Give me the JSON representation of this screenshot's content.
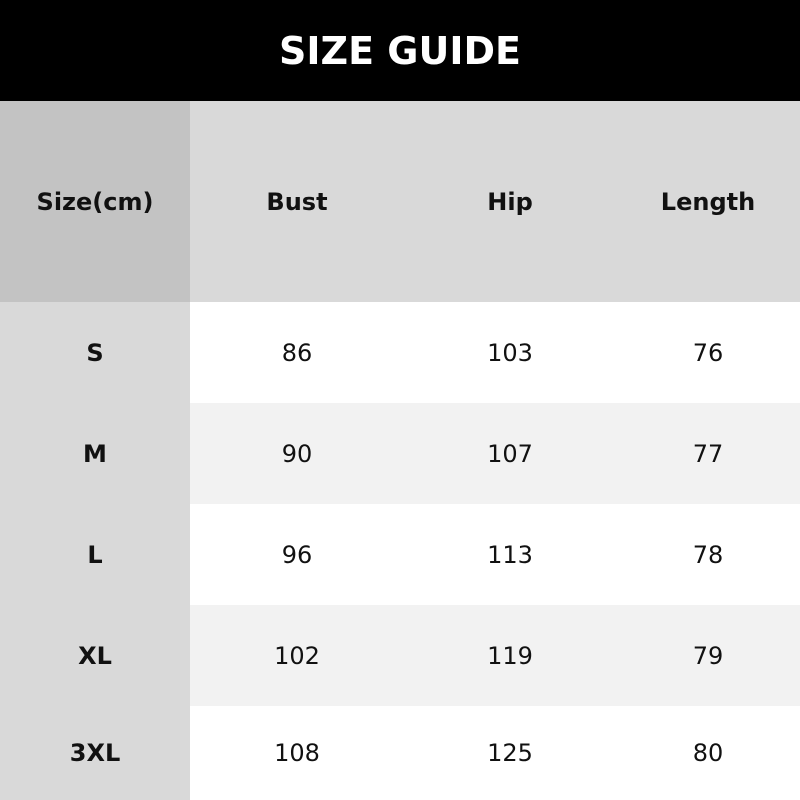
{
  "title": "SIZE GUIDE",
  "headers": [
    "Size(cm)",
    "Bust",
    "Hip",
    "Length"
  ],
  "rows": [
    [
      "S",
      "86",
      "103",
      "76"
    ],
    [
      "M",
      "90",
      "107",
      "77"
    ],
    [
      "L",
      "96",
      "113",
      "78"
    ],
    [
      "XL",
      "102",
      "119",
      "79"
    ],
    [
      "3XL",
      "108",
      "125",
      "80"
    ]
  ],
  "colors": {
    "header_bg": "#000000",
    "header_row_bg": "#d9d9d9",
    "size_col_bg": "#d9d9d9",
    "stripe": "#f2f2f2"
  }
}
